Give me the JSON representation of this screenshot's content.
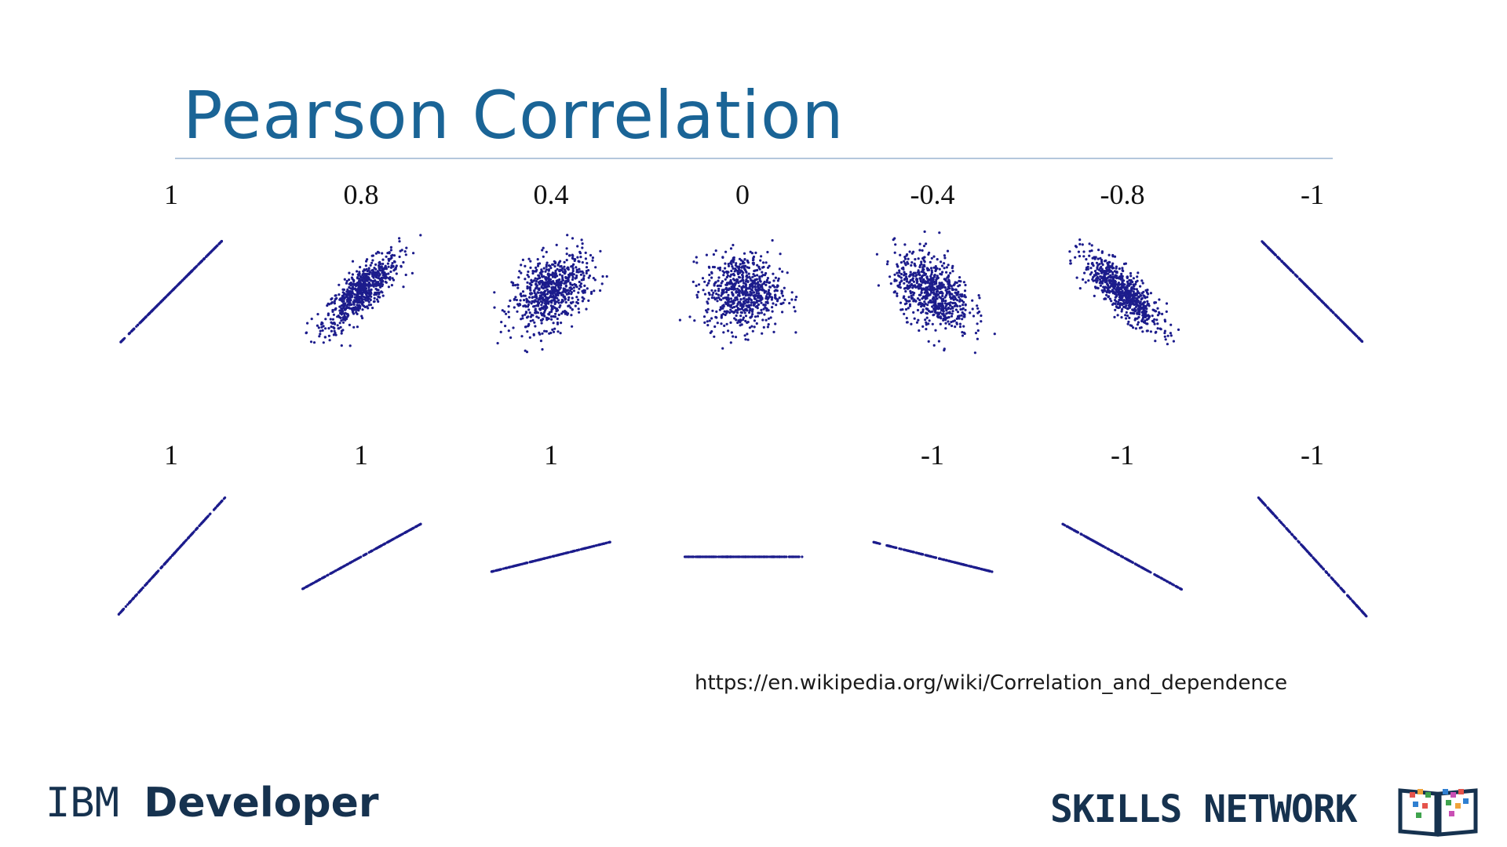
{
  "slide": {
    "title": "Pearson Correlation",
    "source_link": "https://en.wikipedia.org/wiki/Correlation_and_dependence",
    "brand_left_a": "IBM ",
    "brand_left_b": "Developer",
    "brand_right": "SKILLS NETWORK"
  },
  "colors": {
    "title": "#1a6496",
    "points": "#1c1c8c",
    "brand": "#16324f"
  },
  "icons": [
    "book-logo-icon"
  ],
  "chart_data": [
    {
      "type": "scatter",
      "title": "",
      "row": 1,
      "panels": [
        {
          "label": "1",
          "correlation": 1
        },
        {
          "label": "0.8",
          "correlation": 0.8
        },
        {
          "label": "0.4",
          "correlation": 0.4
        },
        {
          "label": "0",
          "correlation": 0
        },
        {
          "label": "-0.4",
          "correlation": -0.4
        },
        {
          "label": "-0.8",
          "correlation": -0.8
        },
        {
          "label": "-1",
          "correlation": -1
        }
      ]
    },
    {
      "type": "scatter",
      "title": "",
      "row": 2,
      "panels": [
        {
          "label": "1",
          "correlation": 1,
          "slope": 1.1
        },
        {
          "label": "1",
          "correlation": 1,
          "slope": 0.55
        },
        {
          "label": "1",
          "correlation": 1,
          "slope": 0.25
        },
        {
          "label": "",
          "correlation": null,
          "slope": 0
        },
        {
          "label": "-1",
          "correlation": -1,
          "slope": -0.25
        },
        {
          "label": "-1",
          "correlation": -1,
          "slope": -0.55
        },
        {
          "label": "-1",
          "correlation": -1,
          "slope": -1.1
        }
      ]
    }
  ]
}
